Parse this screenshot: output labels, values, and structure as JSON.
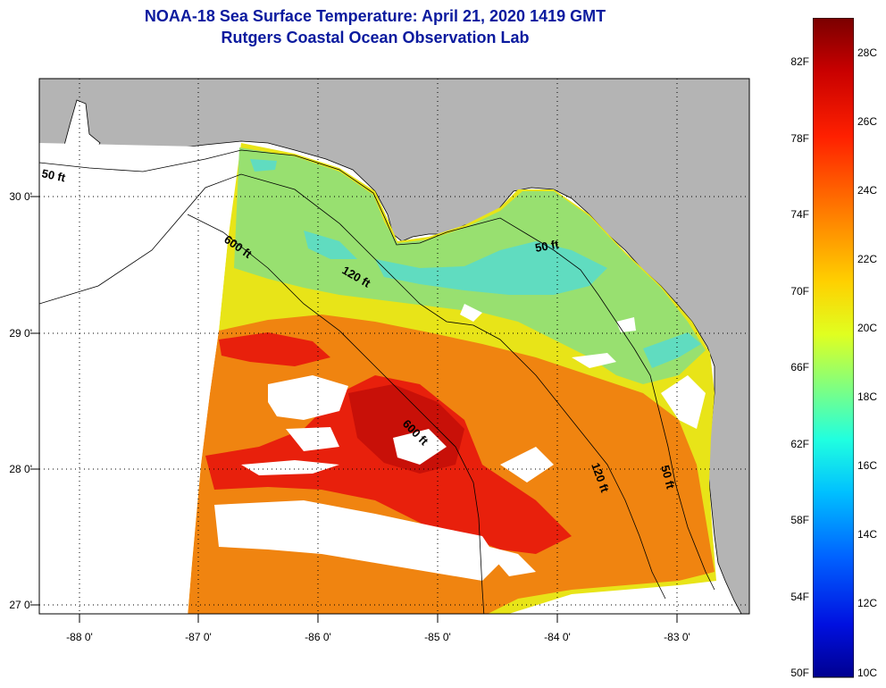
{
  "title": {
    "line1": "NOAA-18 Sea Surface Temperature:  April 21, 2020 1419 GMT",
    "line2": "Rutgers Coastal Ocean Observation Lab"
  },
  "map": {
    "lat_labels": [
      "30 0'",
      "29 0'",
      "28 0'",
      "27 0'"
    ],
    "lon_labels": [
      "-88 0'",
      "-87 0'",
      "-86 0'",
      "-85 0'",
      "-84 0'",
      "-83 0'"
    ],
    "isobath_labels": [
      "50 ft",
      "600 ft",
      "120 ft",
      "50 ft",
      "600 ft",
      "120 ft",
      "50 ft"
    ],
    "colors": {
      "land": "#b4b4b4",
      "warm": "#e8200c",
      "hot": "#c81008",
      "orange": "#f08410",
      "yellow": "#e8e418",
      "green": "#98e070",
      "cyan": "#60dcc0"
    }
  },
  "colorbar": {
    "fahrenheit": [
      "82F",
      "78F",
      "74F",
      "70F",
      "66F",
      "62F",
      "58F",
      "54F",
      "50F"
    ],
    "celsius": [
      "28C",
      "26C",
      "24C",
      "22C",
      "20C",
      "18C",
      "16C",
      "14C",
      "12C",
      "10C"
    ]
  }
}
